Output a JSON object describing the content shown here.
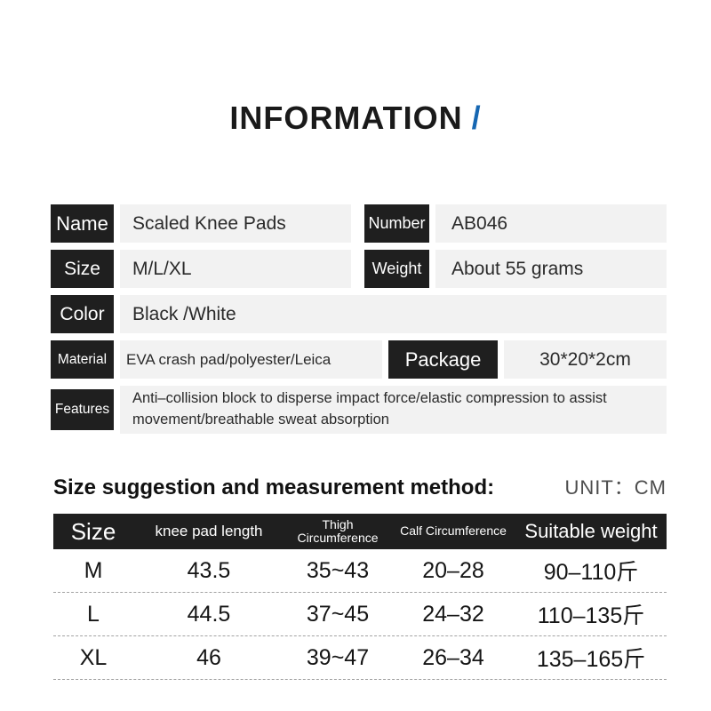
{
  "title": {
    "text": "INFORMATION",
    "slash": "/",
    "slash_color": "#1667b2"
  },
  "colors": {
    "label_bg": "#1f1f1f",
    "value_bg": "#f2f2f2",
    "accent_blue": "#1667b2"
  },
  "info": {
    "name": {
      "label": "Name",
      "value": "Scaled Knee Pads"
    },
    "number": {
      "label": "Number",
      "value": "AB046"
    },
    "size": {
      "label": "Size",
      "value": "M/L/XL"
    },
    "weight": {
      "label": "Weight",
      "value": "About 55 grams"
    },
    "color": {
      "label": "Color",
      "value": "Black /White"
    },
    "material": {
      "label": "Material",
      "value": "EVA crash pad/polyester/Leica"
    },
    "package": {
      "label": "Package",
      "value": "30*20*2cm"
    },
    "features": {
      "label": "Features",
      "value": "Anti–collision block to disperse impact force/elastic compression to assist movement/breathable sweat absorption"
    }
  },
  "size_table": {
    "heading": "Size suggestion and measurement method:",
    "unit": "UNIT：CM",
    "columns": [
      "Size",
      "knee pad length",
      "Thigh Circumference",
      "Calf Circumference",
      "Suitable weight"
    ],
    "rows": [
      [
        "M",
        "43.5",
        "35~43",
        "20–28",
        "90–110斤"
      ],
      [
        "L",
        "44.5",
        "37~45",
        "24–32",
        "110–135斤"
      ],
      [
        "XL",
        "46",
        "39~47",
        "26–34",
        "135–165斤"
      ]
    ]
  }
}
